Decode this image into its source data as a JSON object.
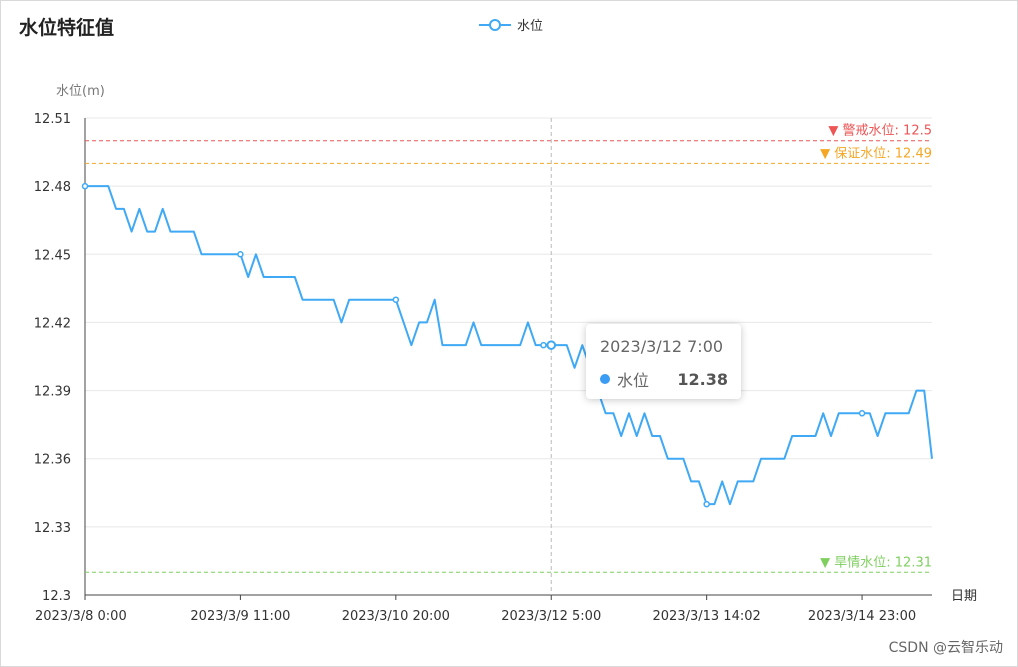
{
  "title": "水位特征值",
  "legend": {
    "label": "水位"
  },
  "watermark": "CSDN @云智乐动",
  "tooltip": {
    "date": "2023/3/12 7:00",
    "series": "水位",
    "value": "12.38"
  },
  "colors": {
    "series": "#3fa9f5",
    "warning": "#ee5555",
    "guarantee": "#f5a623",
    "drought": "#7fcf5f",
    "grid": "#e8e8e8"
  },
  "chart_data": {
    "type": "line",
    "ylabel": "水位(m)",
    "xlabel": "日期",
    "ylim": [
      12.3,
      12.51
    ],
    "y_ticks": [
      "12.3",
      "12.33",
      "12.36",
      "12.39",
      "12.42",
      "12.45",
      "12.48",
      "12.51"
    ],
    "x_tick_labels": [
      "2023/3/8 0:00",
      "2023/3/9 11:00",
      "2023/3/10 20:00",
      "2023/3/12 5:00",
      "2023/3/13 14:02",
      "2023/3/14 23:00"
    ],
    "x_tick_indices": [
      0,
      20,
      40,
      60,
      80,
      100
    ],
    "point_count": 110,
    "mark_lines": [
      {
        "label": "警戒水位: 12.5",
        "value": 12.5,
        "color": "#ee5555"
      },
      {
        "label": "保证水位: 12.49",
        "value": 12.49,
        "color": "#f5a623"
      },
      {
        "label": "旱情水位: 12.31",
        "value": 12.31,
        "color": "#7fcf5f"
      }
    ],
    "series": [
      {
        "name": "水位",
        "values": [
          12.48,
          12.48,
          12.48,
          12.48,
          12.47,
          12.47,
          12.46,
          12.47,
          12.46,
          12.46,
          12.47,
          12.46,
          12.46,
          12.46,
          12.46,
          12.45,
          12.45,
          12.45,
          12.45,
          12.45,
          12.45,
          12.44,
          12.45,
          12.44,
          12.44,
          12.44,
          12.44,
          12.44,
          12.43,
          12.43,
          12.43,
          12.43,
          12.43,
          12.42,
          12.43,
          12.43,
          12.43,
          12.43,
          12.43,
          12.43,
          12.43,
          12.42,
          12.41,
          12.42,
          12.42,
          12.43,
          12.41,
          12.41,
          12.41,
          12.41,
          12.42,
          12.41,
          12.41,
          12.41,
          12.41,
          12.41,
          12.41,
          12.42,
          12.41,
          12.41,
          12.41,
          12.41,
          12.41,
          12.4,
          12.41,
          12.4,
          12.39,
          12.38,
          12.38,
          12.37,
          12.38,
          12.37,
          12.38,
          12.37,
          12.37,
          12.36,
          12.36,
          12.36,
          12.35,
          12.35,
          12.34,
          12.34,
          12.35,
          12.34,
          12.35,
          12.35,
          12.35,
          12.36,
          12.36,
          12.36,
          12.36,
          12.37,
          12.37,
          12.37,
          12.37,
          12.38,
          12.37,
          12.38,
          12.38,
          12.38,
          12.38,
          12.38,
          12.37,
          12.38,
          12.38,
          12.38,
          12.38,
          12.39,
          12.39,
          12.36
        ]
      }
    ]
  }
}
